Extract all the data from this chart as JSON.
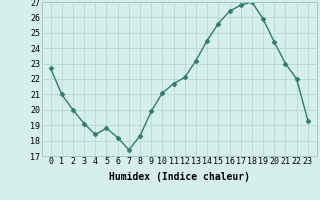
{
  "xlabel": "Humidex (Indice chaleur)",
  "x": [
    0,
    1,
    2,
    3,
    4,
    5,
    6,
    7,
    8,
    9,
    10,
    11,
    12,
    13,
    14,
    15,
    16,
    17,
    18,
    19,
    20,
    21,
    22,
    23
  ],
  "y": [
    22.7,
    21.0,
    20.0,
    19.1,
    18.4,
    18.8,
    18.2,
    17.4,
    18.3,
    19.9,
    21.1,
    21.7,
    22.1,
    23.2,
    24.5,
    25.6,
    26.4,
    26.8,
    27.0,
    25.9,
    24.4,
    23.0,
    22.0,
    19.3
  ],
  "line_color": "#2d7d6e",
  "marker": "D",
  "marker_size": 2.5,
  "line_width": 1.0,
  "ylim": [
    17,
    27
  ],
  "yticks": [
    17,
    18,
    19,
    20,
    21,
    22,
    23,
    24,
    25,
    26,
    27
  ],
  "xticks": [
    0,
    1,
    2,
    3,
    4,
    5,
    6,
    7,
    8,
    9,
    10,
    11,
    12,
    13,
    14,
    15,
    16,
    17,
    18,
    19,
    20,
    21,
    22,
    23
  ],
  "background_color": "#d6eeec",
  "grid_color": "#b8d8d4",
  "axis_fontsize": 7.0,
  "tick_fontsize": 6.0
}
